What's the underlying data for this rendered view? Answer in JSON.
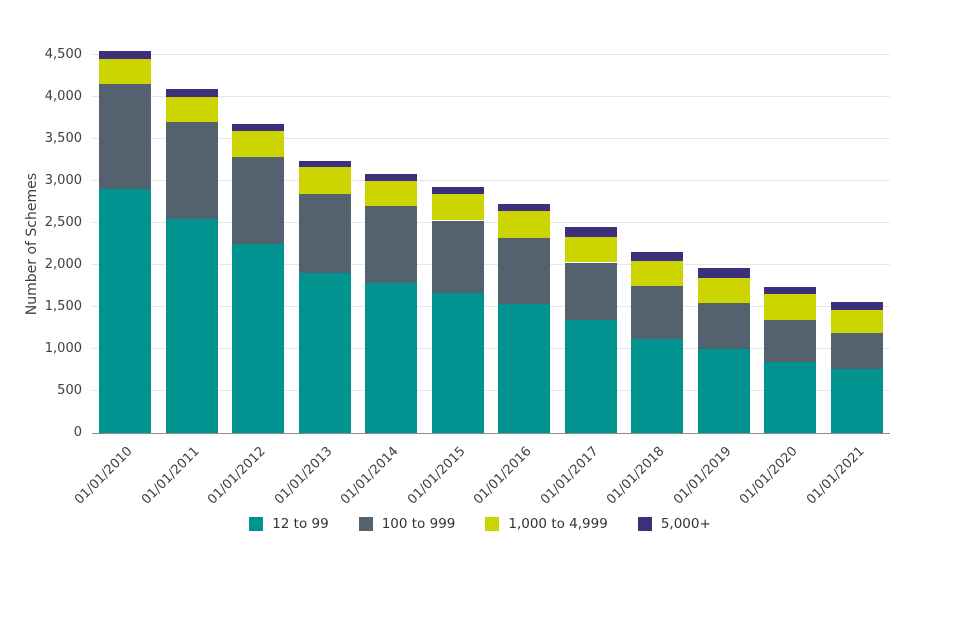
{
  "page": {
    "background": "#ffffff",
    "text_color": "#404040",
    "gridline_color": "#e6e6e6",
    "axis_line_color": "#8f8f8f"
  },
  "chart_data": {
    "type": "bar",
    "stacked": true,
    "title": "",
    "ylabel": "Number of Schemes",
    "xlabel": "",
    "ylim": [
      0,
      4500
    ],
    "ytick_step": 500,
    "grid": true,
    "legend_position": "bottom",
    "categories": [
      "01/01/2010",
      "01/01/2011",
      "01/01/2012",
      "01/01/2013",
      "01/01/2014",
      "01/01/2015",
      "01/01/2016",
      "01/01/2017",
      "01/01/2018",
      "01/01/2019",
      "01/01/2020",
      "01/01/2021"
    ],
    "series": [
      {
        "name": "12 to 99",
        "color": "#009390",
        "values": [
          2900,
          2550,
          2250,
          1900,
          1780,
          1670,
          1530,
          1340,
          1120,
          1000,
          850,
          760
        ]
      },
      {
        "name": "100 to 999",
        "color": "#54616E",
        "values": [
          1250,
          1150,
          1030,
          950,
          920,
          860,
          790,
          690,
          630,
          550,
          490,
          430
        ]
      },
      {
        "name": "1,000 to 4,999",
        "color": "#CDD500",
        "values": [
          300,
          300,
          320,
          320,
          300,
          320,
          320,
          300,
          300,
          300,
          310,
          270
        ]
      },
      {
        "name": "5,000+",
        "color": "#3E2F7D",
        "values": [
          100,
          100,
          80,
          70,
          80,
          80,
          90,
          120,
          110,
          120,
          90,
          100
        ]
      }
    ]
  }
}
